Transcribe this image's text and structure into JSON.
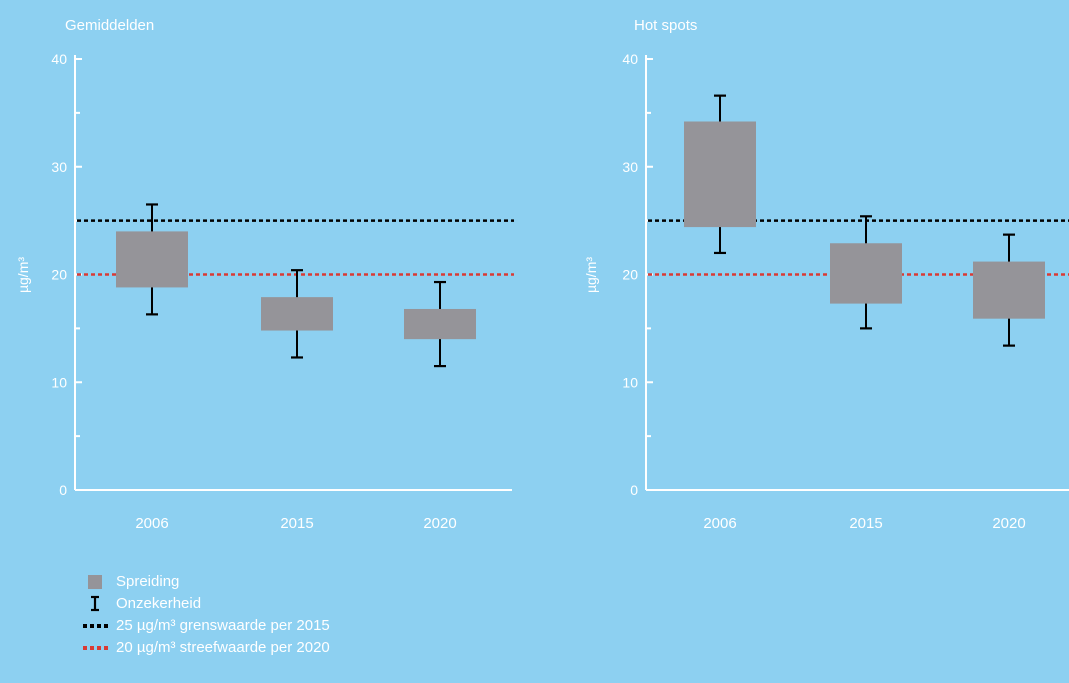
{
  "colors": {
    "background": "#8dd0f1",
    "box": "#959499",
    "whisker": "#000000",
    "limit_line": "#000000",
    "target_line": "#d93a35",
    "text": "#ffffff"
  },
  "chart_data": [
    {
      "type": "box",
      "title": "Gemiddelden",
      "ylabel": "µg/m³",
      "ylim": [
        0,
        40
      ],
      "yticks": [
        "0",
        "10",
        "20",
        "30",
        "40"
      ],
      "categories": [
        "2006",
        "2015",
        "2020"
      ],
      "spreiding": [
        [
          18.8,
          24.0
        ],
        [
          14.8,
          17.9
        ],
        [
          14.0,
          16.8
        ]
      ],
      "onzekerheid": [
        [
          16.3,
          26.5
        ],
        [
          12.3,
          20.4
        ],
        [
          11.5,
          19.3
        ]
      ],
      "reference_lines": [
        25,
        20
      ],
      "grid": false
    },
    {
      "type": "box",
      "title": "Hot spots",
      "ylabel": "µg/m³",
      "ylim": [
        0,
        40
      ],
      "yticks": [
        "0",
        "10",
        "20",
        "30",
        "40"
      ],
      "categories": [
        "2006",
        "2015",
        "2020"
      ],
      "spreiding": [
        [
          24.4,
          34.2
        ],
        [
          17.3,
          22.9
        ],
        [
          15.9,
          21.2
        ]
      ],
      "onzekerheid": [
        [
          22.0,
          36.6
        ],
        [
          15.0,
          25.4
        ],
        [
          13.4,
          23.7
        ]
      ],
      "reference_lines": [
        25,
        20
      ],
      "grid": false
    }
  ],
  "legend": {
    "items": [
      {
        "label": "Spreiding",
        "icon": "grey-square"
      },
      {
        "label": "Onzekerheid",
        "icon": "error-bar-icon"
      },
      {
        "label": "25 µg/m³ grenswaarde per 2015",
        "icon": "black-dotted-line"
      },
      {
        "label": "20 µg/m³ streefwaarde per 2020",
        "icon": "red-dotted-line"
      }
    ]
  }
}
